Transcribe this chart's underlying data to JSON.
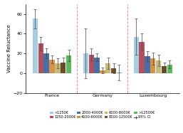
{
  "groups": [
    "France",
    "Germany",
    "Luxembourg"
  ],
  "categories": [
    "<1250€",
    "1250-2000€",
    "2000-4000€",
    "4000-6000€",
    "6000-8000€",
    "8000-12500€",
    ">12500€"
  ],
  "colors": [
    "#a8cce0",
    "#b05060",
    "#4a6fa5",
    "#d4924a",
    "#c8b87a",
    "#6b4f2a",
    "#5cb85c"
  ],
  "bar_values": {
    "France": [
      55,
      30,
      20,
      14,
      10,
      11,
      18
    ],
    "Germany": [
      20,
      19,
      16,
      3,
      10,
      5,
      1
    ],
    "Luxembourg": [
      37,
      32,
      17,
      15,
      13,
      7,
      9
    ]
  },
  "bar_errors": {
    "France": [
      10,
      7,
      5,
      4,
      5,
      5,
      6
    ],
    "Germany": [
      25,
      6,
      4,
      3,
      6,
      5,
      8
    ],
    "Luxembourg": [
      18,
      8,
      5,
      6,
      6,
      4,
      4
    ]
  },
  "ylim": [
    -20,
    70
  ],
  "yticks": [
    -20,
    0,
    20,
    40,
    60
  ],
  "ylabel": "Vaccine Reluctance",
  "divider_color": "#e87878",
  "background_color": "#ffffff",
  "axis_fontsize": 5,
  "tick_fontsize": 4.5,
  "legend_fontsize": 3.6
}
